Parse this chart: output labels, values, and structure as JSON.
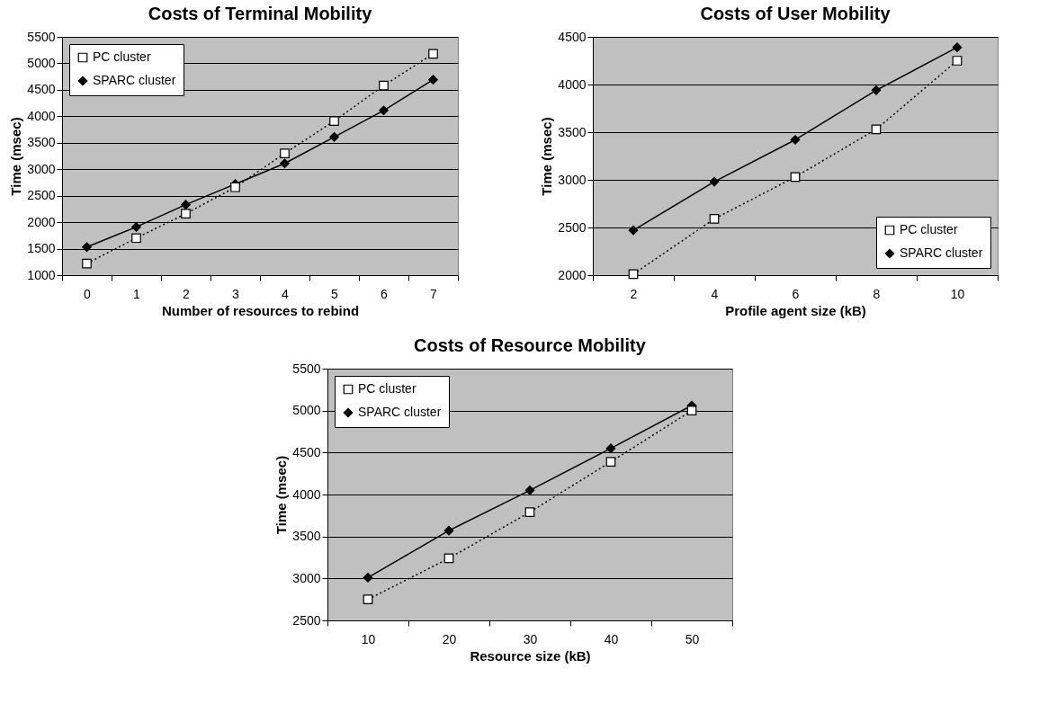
{
  "chart_data": [
    {
      "type": "line",
      "title": "Costs of Terminal Mobility",
      "xlabel": "Number of resources to rebind",
      "ylabel": "Time (msec)",
      "categories": [
        "0",
        "1",
        "2",
        "3",
        "4",
        "5",
        "6",
        "7"
      ],
      "ylim": [
        1000,
        5500
      ],
      "yticks": [
        1000,
        1500,
        2000,
        2500,
        3000,
        3500,
        4000,
        4500,
        5000,
        5500
      ],
      "grid": "y",
      "legend": "top left",
      "series": [
        {
          "name": "PC cluster",
          "color": "#000000",
          "marker": "square",
          "line_style": "dotted",
          "values": [
            1220,
            1700,
            2160,
            2660,
            3300,
            3910,
            4580,
            5180
          ]
        },
        {
          "name": "SPARC cluster",
          "color": "#000000",
          "marker": "diamond",
          "line_style": "solid",
          "values": [
            1530,
            1910,
            2330,
            2720,
            3110,
            3610,
            4110,
            4690
          ]
        }
      ]
    },
    {
      "type": "line",
      "title": "Costs of User Mobility",
      "xlabel": "Profile agent size (kB)",
      "ylabel": "Time (msec)",
      "categories": [
        "2",
        "4",
        "6",
        "8",
        "10"
      ],
      "ylim": [
        2000,
        4500
      ],
      "yticks": [
        2000,
        2500,
        3000,
        3500,
        4000,
        4500
      ],
      "grid": "y",
      "legend": "bottom right",
      "series": [
        {
          "name": "PC cluster",
          "color": "#000000",
          "marker": "square",
          "line_style": "dotted",
          "values": [
            2010,
            2590,
            3030,
            3530,
            4250
          ]
        },
        {
          "name": "SPARC cluster",
          "color": "#000000",
          "marker": "diamond",
          "line_style": "solid",
          "values": [
            2470,
            2980,
            3420,
            3940,
            4390
          ]
        }
      ]
    },
    {
      "type": "line",
      "title": "Costs of Resource Mobility",
      "xlabel": "Resource size (kB)",
      "ylabel": "Time (msec)",
      "categories": [
        "10",
        "20",
        "30",
        "40",
        "50"
      ],
      "ylim": [
        2500,
        5500
      ],
      "yticks": [
        2500,
        3000,
        3500,
        4000,
        4500,
        5000,
        5500
      ],
      "grid": "y",
      "legend": "top left",
      "series": [
        {
          "name": "PC cluster",
          "color": "#000000",
          "marker": "square",
          "line_style": "dotted",
          "values": [
            2750,
            3240,
            3790,
            4390,
            5000
          ]
        },
        {
          "name": "SPARC cluster",
          "color": "#000000",
          "marker": "diamond",
          "line_style": "solid",
          "values": [
            3010,
            3570,
            4050,
            4550,
            5060
          ]
        }
      ]
    }
  ]
}
